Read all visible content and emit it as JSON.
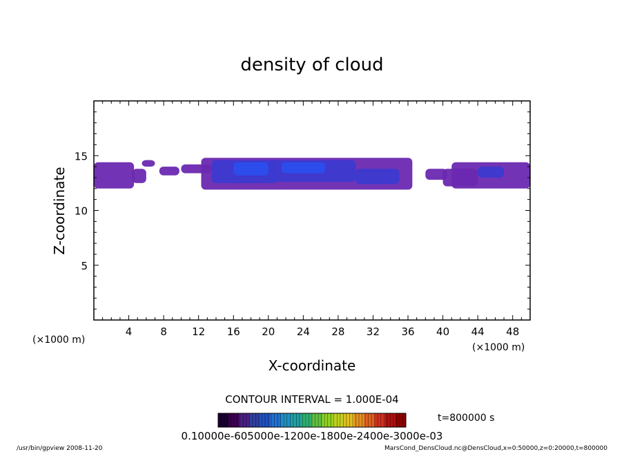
{
  "chart_data": {
    "type": "heatmap",
    "title": "density of cloud",
    "xlabel": "X-coordinate",
    "ylabel": "Z-coordinate",
    "x_unit_left": "(×1000 m)",
    "x_unit_right": "(×1000 m)",
    "xlim": [
      0,
      50
    ],
    "ylim": [
      0,
      20
    ],
    "x_ticks": [
      4,
      8,
      12,
      16,
      20,
      24,
      28,
      32,
      36,
      40,
      44,
      48
    ],
    "y_ticks": [
      5,
      10,
      15
    ],
    "contour_interval_text": "CONTOUR INTERVAL = 1.000E-04",
    "time_text": "t=800000 s",
    "colorbar_labels_text": "0.10000e-605000e-1200e-1800e-2400e-3000e-03",
    "colorbar_colors": [
      "#1a0030",
      "#3a0050",
      "#4a2080",
      "#3040a0",
      "#2050c0",
      "#2070d0",
      "#2090c0",
      "#20a0a0",
      "#30b070",
      "#60c040",
      "#90d020",
      "#c0d020",
      "#e0c020",
      "#e09020",
      "#e06020",
      "#d03020",
      "#b01010",
      "#900000"
    ],
    "cloud_regions": [
      {
        "x0": 0.0,
        "x1": 4.6,
        "z0": 12.0,
        "z1": 14.4,
        "level": "low"
      },
      {
        "x0": 4.4,
        "x1": 6.0,
        "z0": 12.5,
        "z1": 13.8,
        "level": "low"
      },
      {
        "x0": 5.5,
        "x1": 7.0,
        "z0": 14.0,
        "z1": 14.6,
        "level": "low"
      },
      {
        "x0": 7.5,
        "x1": 9.8,
        "z0": 13.2,
        "z1": 14.0,
        "level": "low"
      },
      {
        "x0": 10.0,
        "x1": 13.5,
        "z0": 13.4,
        "z1": 14.2,
        "level": "low"
      },
      {
        "x0": 12.3,
        "x1": 36.5,
        "z0": 11.9,
        "z1": 14.8,
        "level": "low"
      },
      {
        "x0": 13.5,
        "x1": 21.0,
        "z0": 12.5,
        "z1": 14.6,
        "level": "mid"
      },
      {
        "x0": 20.0,
        "x1": 30.0,
        "z0": 12.6,
        "z1": 14.6,
        "level": "mid"
      },
      {
        "x0": 30.0,
        "x1": 35.0,
        "z0": 12.4,
        "z1": 13.8,
        "level": "mid"
      },
      {
        "x0": 16.0,
        "x1": 20.0,
        "z0": 13.2,
        "z1": 14.4,
        "level": "high"
      },
      {
        "x0": 21.5,
        "x1": 26.5,
        "z0": 13.4,
        "z1": 14.4,
        "level": "high"
      },
      {
        "x0": 38.0,
        "x1": 40.5,
        "z0": 12.8,
        "z1": 13.8,
        "level": "low"
      },
      {
        "x0": 40.0,
        "x1": 44.0,
        "z0": 12.2,
        "z1": 13.8,
        "level": "low"
      },
      {
        "x0": 41.0,
        "x1": 50.0,
        "z0": 12.0,
        "z1": 14.4,
        "level": "low"
      },
      {
        "x0": 44.0,
        "x1": 47.0,
        "z0": 13.0,
        "z1": 14.0,
        "level": "mid"
      }
    ]
  },
  "footer": {
    "left": "/usr/bin/gpview   2008-11-20",
    "right": "MarsCond_DensCloud.nc@DensCloud,x=0:50000,z=0:20000,t=800000"
  },
  "colors": {
    "low": "#6a28b0",
    "mid": "#3a3ad0",
    "high": "#2a50f0",
    "edge": "#8a30c0"
  }
}
